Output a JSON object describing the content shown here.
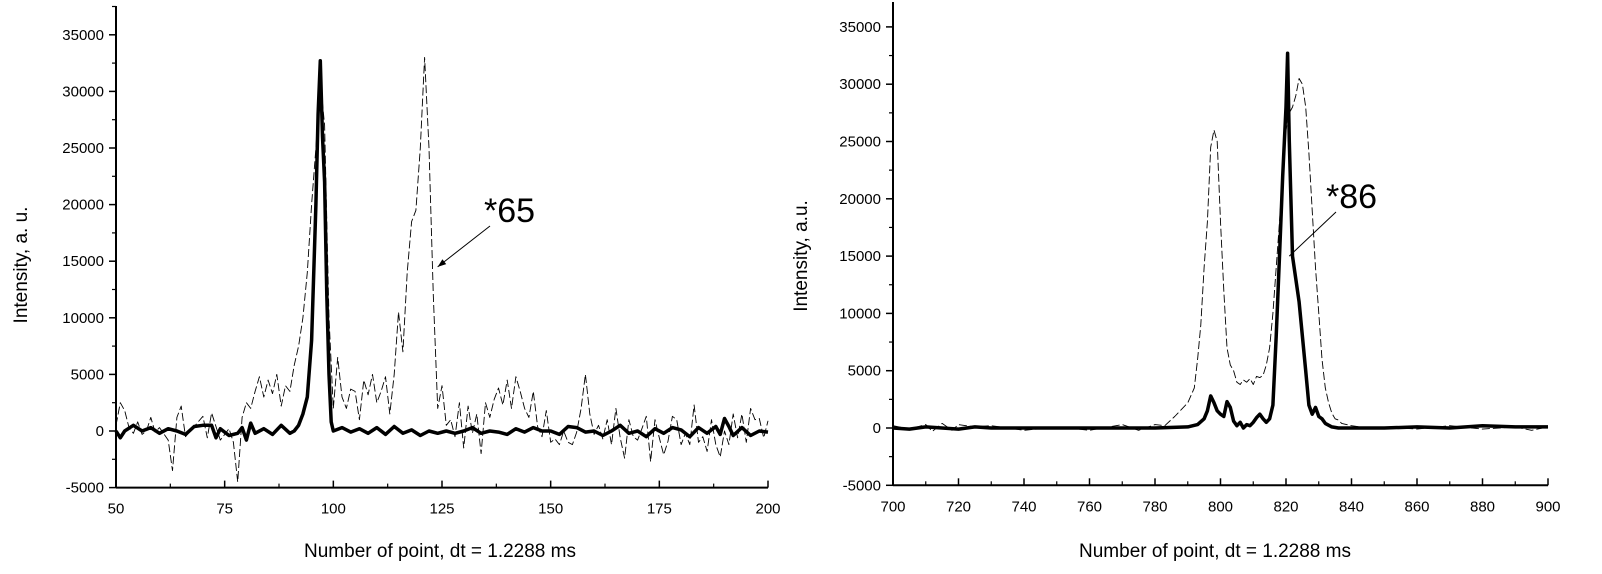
{
  "chart_data": [
    {
      "type": "line",
      "xlabel": "Number of point, dt = 1.2288 ms",
      "ylabel": "Intensity, a. u.",
      "xlim": [
        50,
        200
      ],
      "ylim": [
        -5000,
        37500
      ],
      "xticks": [
        "50",
        "75",
        "100",
        "125",
        "150",
        "175",
        "200"
      ],
      "yticks": [
        "-5000",
        "0",
        "5000",
        "10000",
        "15000",
        "20000",
        "25000",
        "30000",
        "35000"
      ],
      "grid": false,
      "annotation": {
        "text": "*65",
        "points_to": [
          124,
          14500
        ]
      },
      "series": [
        {
          "style": "thick-solid",
          "color": "#000000",
          "x": [
            50,
            51,
            52,
            54,
            56,
            58,
            60,
            62,
            64,
            66,
            68,
            70,
            72,
            73,
            74,
            76,
            78,
            79,
            80,
            81,
            82,
            84,
            86,
            88,
            90,
            91,
            92,
            93,
            94,
            95,
            96,
            96.5,
            97,
            97.5,
            98,
            98.5,
            99,
            99.5,
            100,
            102,
            104,
            106,
            108,
            110,
            112,
            114,
            116,
            118,
            120,
            122,
            124,
            126,
            128,
            130,
            132,
            134,
            136,
            138,
            140,
            142,
            144,
            146,
            148,
            150,
            152,
            154,
            156,
            158,
            160,
            162,
            164,
            166,
            168,
            170,
            172,
            174,
            176,
            178,
            180,
            182,
            184,
            186,
            188,
            189,
            190,
            191,
            192,
            194,
            196,
            198,
            200
          ],
          "y": [
            0,
            -600,
            0,
            500,
            0,
            300,
            -200,
            200,
            0,
            -300,
            400,
            500,
            500,
            -600,
            200,
            -400,
            -200,
            300,
            -800,
            700,
            -200,
            200,
            -300,
            500,
            -200,
            0,
            500,
            1500,
            3000,
            8000,
            20000,
            28000,
            32700,
            26000,
            22000,
            12000,
            5000,
            800,
            0,
            300,
            -100,
            200,
            -200,
            300,
            -300,
            400,
            -200,
            100,
            -400,
            0,
            -200,
            0,
            -200,
            0,
            300,
            -200,
            0,
            -100,
            -300,
            200,
            -100,
            300,
            0,
            0,
            -300,
            400,
            300,
            -100,
            0,
            -400,
            0,
            500,
            -200,
            0,
            -500,
            200,
            -200,
            300,
            100,
            -500,
            300,
            -200,
            400,
            -300,
            1100,
            400,
            -400,
            300,
            -400,
            0,
            -100
          ]
        },
        {
          "style": "thin-dashed",
          "color": "#000000",
          "x": [
            50,
            51,
            52,
            53,
            54,
            55,
            56,
            57,
            58,
            59,
            60,
            62,
            63,
            64,
            65,
            66,
            68,
            70,
            71,
            72,
            74,
            75,
            76,
            77,
            78,
            79,
            80,
            81,
            82,
            83,
            84,
            85,
            86,
            87,
            88,
            89,
            90,
            91,
            92,
            93,
            94,
            95,
            96,
            97,
            98,
            99,
            100,
            101,
            102,
            103,
            104,
            105,
            106,
            107,
            108,
            109,
            110,
            111,
            112,
            113,
            114,
            115,
            116,
            117,
            118,
            119,
            120,
            121,
            122,
            123,
            124,
            125,
            126,
            127,
            128,
            129,
            130,
            131,
            132,
            133,
            134,
            135,
            136,
            137,
            138,
            139,
            140,
            141,
            142,
            143,
            144,
            145,
            146,
            147,
            148,
            149,
            150,
            151,
            152,
            153,
            154,
            155,
            156,
            157,
            158,
            159,
            160,
            161,
            162,
            163,
            164,
            165,
            166,
            167,
            168,
            169,
            170,
            171,
            172,
            173,
            174,
            175,
            176,
            177,
            178,
            179,
            180,
            181,
            182,
            183,
            184,
            185,
            186,
            187,
            188,
            189,
            190,
            191,
            192,
            193,
            194,
            195,
            196,
            197,
            198,
            199,
            200
          ],
          "y": [
            500,
            2500,
            1800,
            300,
            -200,
            800,
            -300,
            0,
            1200,
            -100,
            300,
            -800,
            -3500,
            1200,
            2200,
            -500,
            400,
            1300,
            -600,
            1600,
            -800,
            -300,
            200,
            -1000,
            -4500,
            1200,
            2500,
            2000,
            3500,
            4800,
            3000,
            4500,
            3300,
            5000,
            2200,
            4000,
            3500,
            5800,
            7500,
            10000,
            14000,
            20000,
            25000,
            31000,
            27000,
            10000,
            2000,
            6500,
            3000,
            2000,
            3700,
            3500,
            1000,
            4500,
            3200,
            5000,
            2500,
            3500,
            4800,
            1500,
            5000,
            10500,
            7000,
            14000,
            18500,
            19500,
            25000,
            33000,
            25000,
            12000,
            2000,
            4000,
            500,
            1000,
            -500,
            2500,
            -1500,
            2200,
            -200,
            1500,
            -2000,
            2500,
            1200,
            2800,
            3800,
            2300,
            4500,
            2000,
            4800,
            3500,
            2000,
            1200,
            3500,
            400,
            -500,
            1800,
            -1000,
            -700,
            -1200,
            0,
            -1000,
            -1200,
            -100,
            2000,
            5000,
            1500,
            -300,
            500,
            -700,
            1000,
            -1200,
            2000,
            -600,
            -2400,
            1000,
            -500,
            -800,
            200,
            1300,
            -2700,
            1000,
            -600,
            -2100,
            -900,
            1300,
            1000,
            -1200,
            -200,
            -1200,
            2300,
            -1000,
            -500,
            -1800,
            1000,
            -1200,
            -2300,
            0,
            -1200,
            1500,
            -600,
            1500,
            -1000,
            2000,
            1000,
            1100,
            -600,
            900
          ]
        }
      ]
    },
    {
      "type": "line",
      "xlabel": "Number of point, dt = 1.2288 ms",
      "ylabel": "Intensity, a.u.",
      "xlim": [
        700,
        900
      ],
      "ylim": [
        -5000,
        37500
      ],
      "xticks": [
        "700",
        "720",
        "740",
        "760",
        "780",
        "800",
        "820",
        "840",
        "860",
        "880",
        "900"
      ],
      "yticks": [
        "-5000",
        "0",
        "5000",
        "10000",
        "15000",
        "20000",
        "25000",
        "30000",
        "35000"
      ],
      "grid": false,
      "annotation": {
        "text": "*86",
        "points_to": [
          821,
          15000
        ]
      },
      "series": [
        {
          "style": "thick-solid",
          "color": "#000000",
          "x": [
            700,
            705,
            710,
            715,
            720,
            725,
            730,
            740,
            750,
            760,
            770,
            780,
            790,
            793,
            795,
            796,
            797,
            798,
            799,
            800,
            801,
            802,
            803,
            804,
            805,
            806,
            807,
            808,
            809,
            810,
            811,
            812,
            813,
            814,
            815,
            816,
            817,
            818,
            819,
            820,
            820.5,
            821,
            821.5,
            822,
            823,
            824,
            825,
            826,
            827,
            828,
            829,
            830,
            831,
            832,
            834,
            836,
            840,
            850,
            860,
            870,
            880,
            890,
            900
          ],
          "y": [
            0,
            -100,
            100,
            0,
            -100,
            100,
            0,
            0,
            0,
            0,
            0,
            0,
            100,
            300,
            800,
            1500,
            2800,
            2200,
            1500,
            1200,
            1000,
            2300,
            1800,
            600,
            200,
            500,
            0,
            300,
            200,
            500,
            900,
            1200,
            800,
            500,
            800,
            2000,
            8000,
            15000,
            22000,
            28000,
            32700,
            25000,
            20000,
            15000,
            13000,
            11000,
            8000,
            5000,
            2000,
            1200,
            1800,
            1000,
            800,
            400,
            100,
            0,
            0,
            0,
            100,
            0,
            200,
            100,
            100
          ]
        },
        {
          "style": "thin-dashed",
          "color": "#000000",
          "x": [
            700,
            705,
            710,
            712,
            715,
            718,
            720,
            725,
            730,
            740,
            750,
            760,
            770,
            775,
            780,
            783,
            786,
            788,
            790,
            792,
            793,
            794,
            795,
            796,
            797,
            798,
            799,
            800,
            801,
            802,
            803,
            804,
            805,
            806,
            807,
            808,
            809,
            810,
            811,
            812,
            813,
            814,
            815,
            816,
            817,
            818,
            819,
            820,
            821,
            822,
            823,
            824,
            825,
            826,
            827,
            828,
            829,
            830,
            831,
            832,
            833,
            834,
            835,
            836,
            837,
            840,
            845,
            850,
            860,
            870,
            880,
            890,
            895,
            900
          ],
          "y": [
            200,
            -100,
            300,
            -300,
            400,
            -200,
            300,
            100,
            200,
            -200,
            100,
            -200,
            300,
            -200,
            300,
            200,
            1000,
            1600,
            2200,
            3500,
            6000,
            9000,
            14000,
            18000,
            24500,
            26000,
            25000,
            18000,
            12000,
            7000,
            5500,
            5000,
            4000,
            3800,
            4200,
            4000,
            4300,
            3800,
            4500,
            4400,
            4600,
            5500,
            7000,
            10000,
            14000,
            18000,
            22000,
            26000,
            27500,
            28000,
            29000,
            30500,
            30000,
            28000,
            24000,
            19000,
            14000,
            10000,
            6000,
            3500,
            2200,
            1300,
            800,
            700,
            400,
            200,
            0,
            100,
            -100,
            200,
            -100,
            100,
            -200,
            100
          ]
        }
      ]
    }
  ]
}
